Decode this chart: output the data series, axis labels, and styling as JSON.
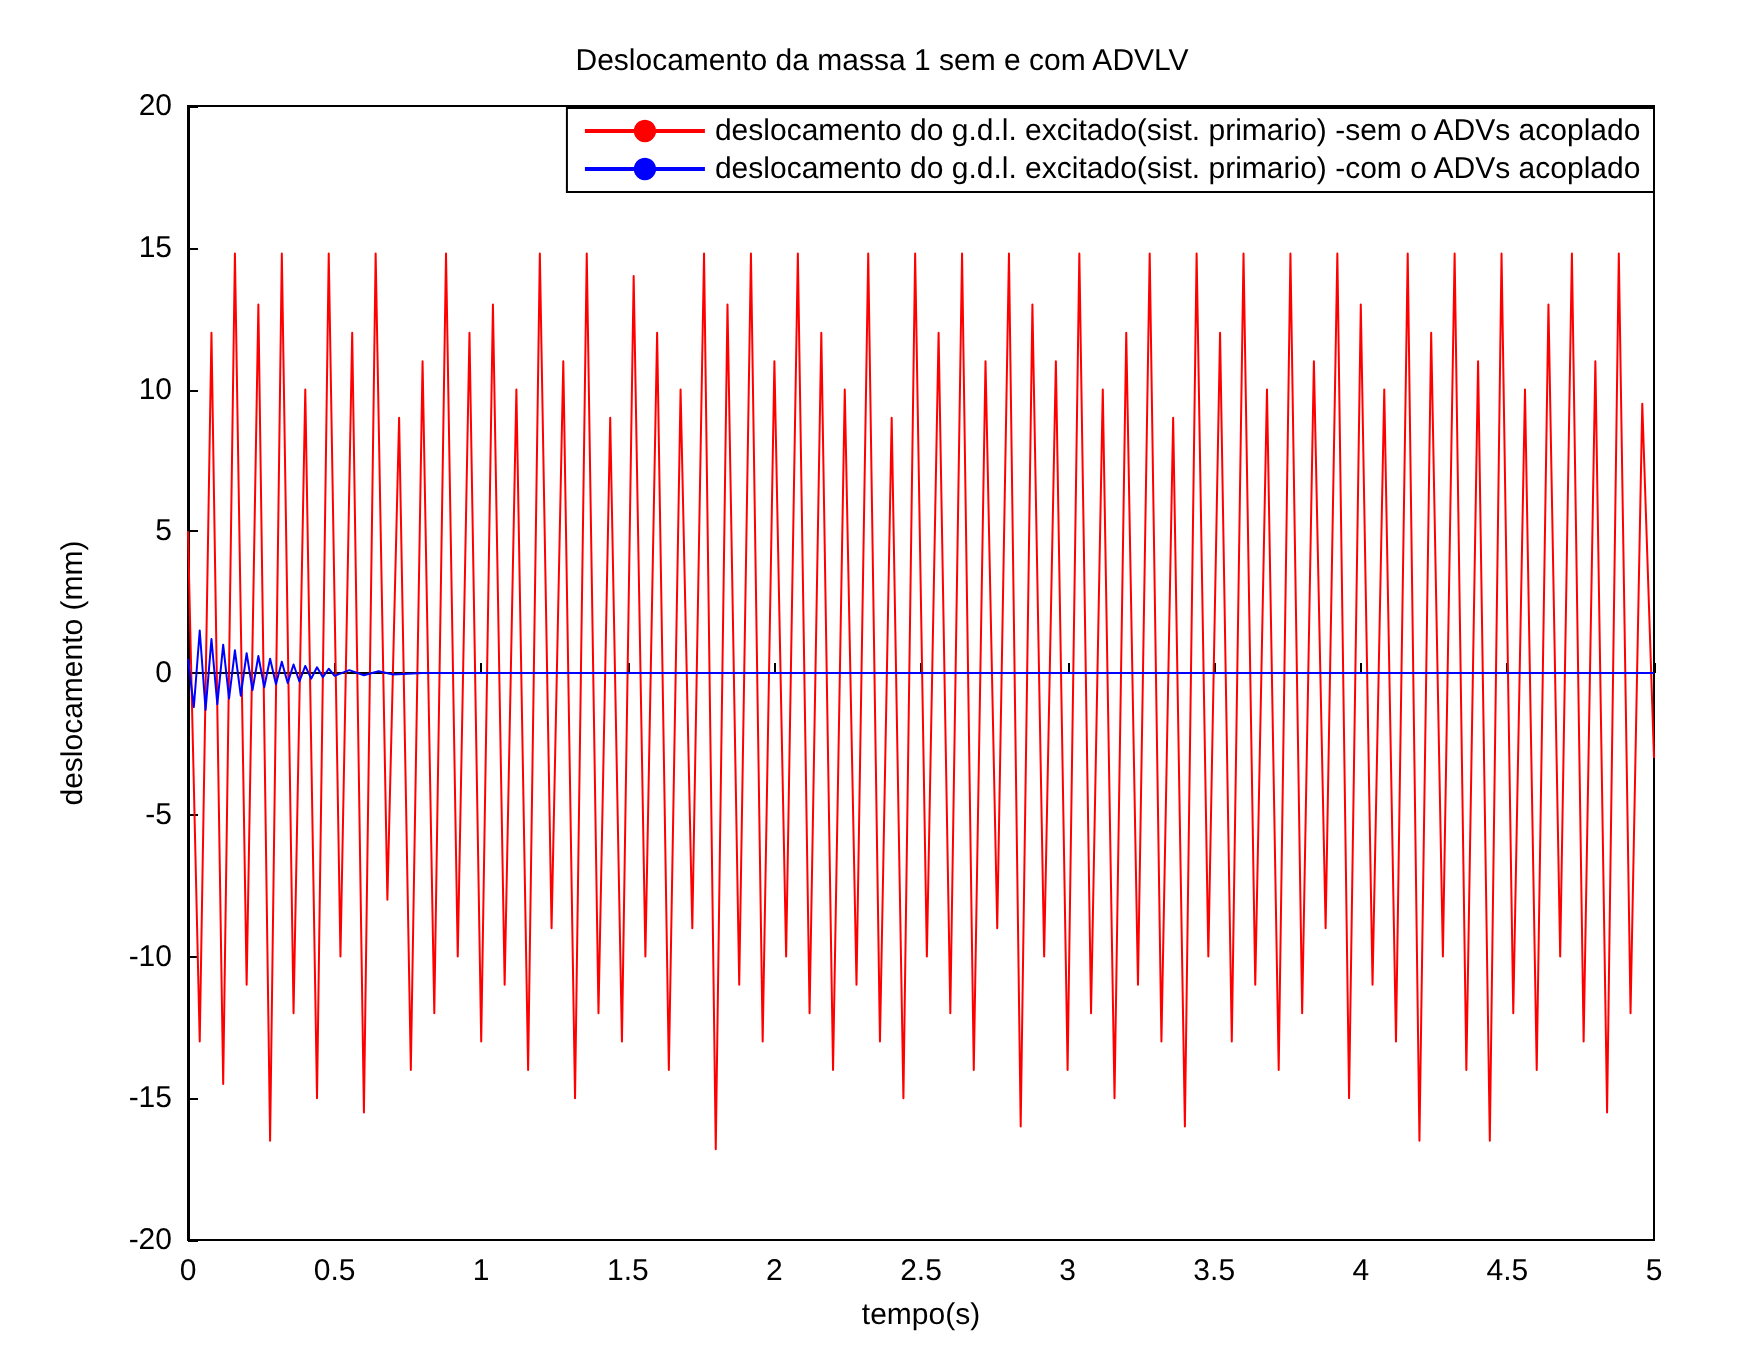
{
  "chart_data": {
    "type": "line",
    "title": "Deslocamento da massa 1 sem e com ADVLV",
    "xlabel": "tempo(s)",
    "ylabel": "deslocamento (mm)",
    "xlim": [
      0,
      5
    ],
    "xticks": [
      0,
      0.5,
      1,
      1.5,
      2,
      2.5,
      3,
      3.5,
      4,
      4.5,
      5
    ],
    "ylim": [
      -20,
      20
    ],
    "yticks": [
      -20,
      -15,
      -10,
      -5,
      0,
      5,
      10,
      15,
      20
    ],
    "legend": "top right",
    "marker": "none",
    "line_style": "solid",
    "series": [
      {
        "name": "deslocamento do g.d.l. excitado(sist. primario) -sem o ADVs acoplado",
        "color": "#ff0000",
        "x": [
          0,
          0.04,
          0.08,
          0.12,
          0.16,
          0.2,
          0.24,
          0.28,
          0.32,
          0.36,
          0.4,
          0.44,
          0.48,
          0.52,
          0.56,
          0.6,
          0.64,
          0.68,
          0.72,
          0.76,
          0.8,
          0.84,
          0.88,
          0.92,
          0.96,
          1,
          1.04,
          1.08,
          1.12,
          1.16,
          1.2,
          1.24,
          1.28,
          1.32,
          1.36,
          1.4,
          1.44,
          1.48,
          1.52,
          1.56,
          1.6,
          1.64,
          1.68,
          1.72,
          1.76,
          1.8,
          1.84,
          1.88,
          1.92,
          1.96,
          2,
          2.04,
          2.08,
          2.12,
          2.16,
          2.2,
          2.24,
          2.28,
          2.32,
          2.36,
          2.4,
          2.44,
          2.48,
          2.52,
          2.56,
          2.6,
          2.64,
          2.68,
          2.72,
          2.76,
          2.8,
          2.84,
          2.88,
          2.92,
          2.96,
          3,
          3.04,
          3.08,
          3.12,
          3.16,
          3.2,
          3.24,
          3.28,
          3.32,
          3.36,
          3.4,
          3.44,
          3.48,
          3.52,
          3.56,
          3.6,
          3.64,
          3.68,
          3.72,
          3.76,
          3.8,
          3.84,
          3.88,
          3.92,
          3.96,
          4,
          4.04,
          4.08,
          4.12,
          4.16,
          4.2,
          4.24,
          4.28,
          4.32,
          4.36,
          4.4,
          4.44,
          4.48,
          4.52,
          4.56,
          4.6,
          4.64,
          4.68,
          4.72,
          4.76,
          4.8,
          4.84,
          4.88,
          4.92,
          4.96,
          5
        ],
        "values": [
          5,
          -13,
          12,
          -14.5,
          14.8,
          -11,
          13,
          -16.5,
          14.8,
          -12,
          10,
          -15,
          14.8,
          -10,
          12,
          -15.5,
          14.8,
          -8,
          9,
          -14,
          11,
          -12,
          14.8,
          -10,
          12,
          -13,
          13,
          -11,
          10,
          -14,
          14.8,
          -9,
          11,
          -15,
          14.8,
          -12,
          9,
          -13,
          14,
          -10,
          12,
          -14,
          10,
          -9,
          14.8,
          -16.8,
          13,
          -11,
          14.8,
          -13,
          11,
          -10,
          14.8,
          -12,
          12,
          -14,
          10,
          -11,
          14.8,
          -13,
          9,
          -15,
          14.8,
          -10,
          12,
          -12,
          14.8,
          -14,
          11,
          -9,
          14.8,
          -16,
          13,
          -10,
          11,
          -14,
          14.8,
          -12,
          10,
          -15,
          12,
          -11,
          14.8,
          -13,
          9,
          -16,
          14.8,
          -10,
          12,
          -13,
          14.8,
          -11,
          10,
          -14,
          14.8,
          -12,
          11,
          -9,
          14.8,
          -15,
          13,
          -11,
          10,
          -13,
          14.8,
          -16.5,
          12,
          -10,
          14.8,
          -14,
          11,
          -16.5,
          14.8,
          -12,
          10,
          -14,
          13,
          -10,
          14.8,
          -13,
          11,
          -15.5,
          14.8,
          -12,
          9.5,
          -3
        ]
      },
      {
        "name": "deslocamento do g.d.l. excitado(sist. primario) -com o ADVs acoplado",
        "color": "#0000ff",
        "x": [
          0,
          0.02,
          0.04,
          0.06,
          0.08,
          0.1,
          0.12,
          0.14,
          0.16,
          0.18,
          0.2,
          0.22,
          0.24,
          0.26,
          0.28,
          0.3,
          0.32,
          0.34,
          0.36,
          0.38,
          0.4,
          0.42,
          0.44,
          0.46,
          0.48,
          0.5,
          0.55,
          0.6,
          0.65,
          0.7,
          0.8,
          1,
          1.5,
          2,
          2.5,
          3,
          3.5,
          4,
          4.5,
          5
        ],
        "values": [
          0.5,
          -1.2,
          1.5,
          -1.3,
          1.2,
          -1.1,
          1,
          -0.9,
          0.8,
          -0.8,
          0.7,
          -0.6,
          0.6,
          -0.5,
          0.5,
          -0.4,
          0.4,
          -0.35,
          0.3,
          -0.3,
          0.25,
          -0.2,
          0.2,
          -0.15,
          0.15,
          -0.1,
          0.1,
          -0.08,
          0.06,
          -0.05,
          0,
          0,
          0,
          0,
          0,
          0,
          0,
          0,
          0,
          0
        ]
      }
    ]
  }
}
